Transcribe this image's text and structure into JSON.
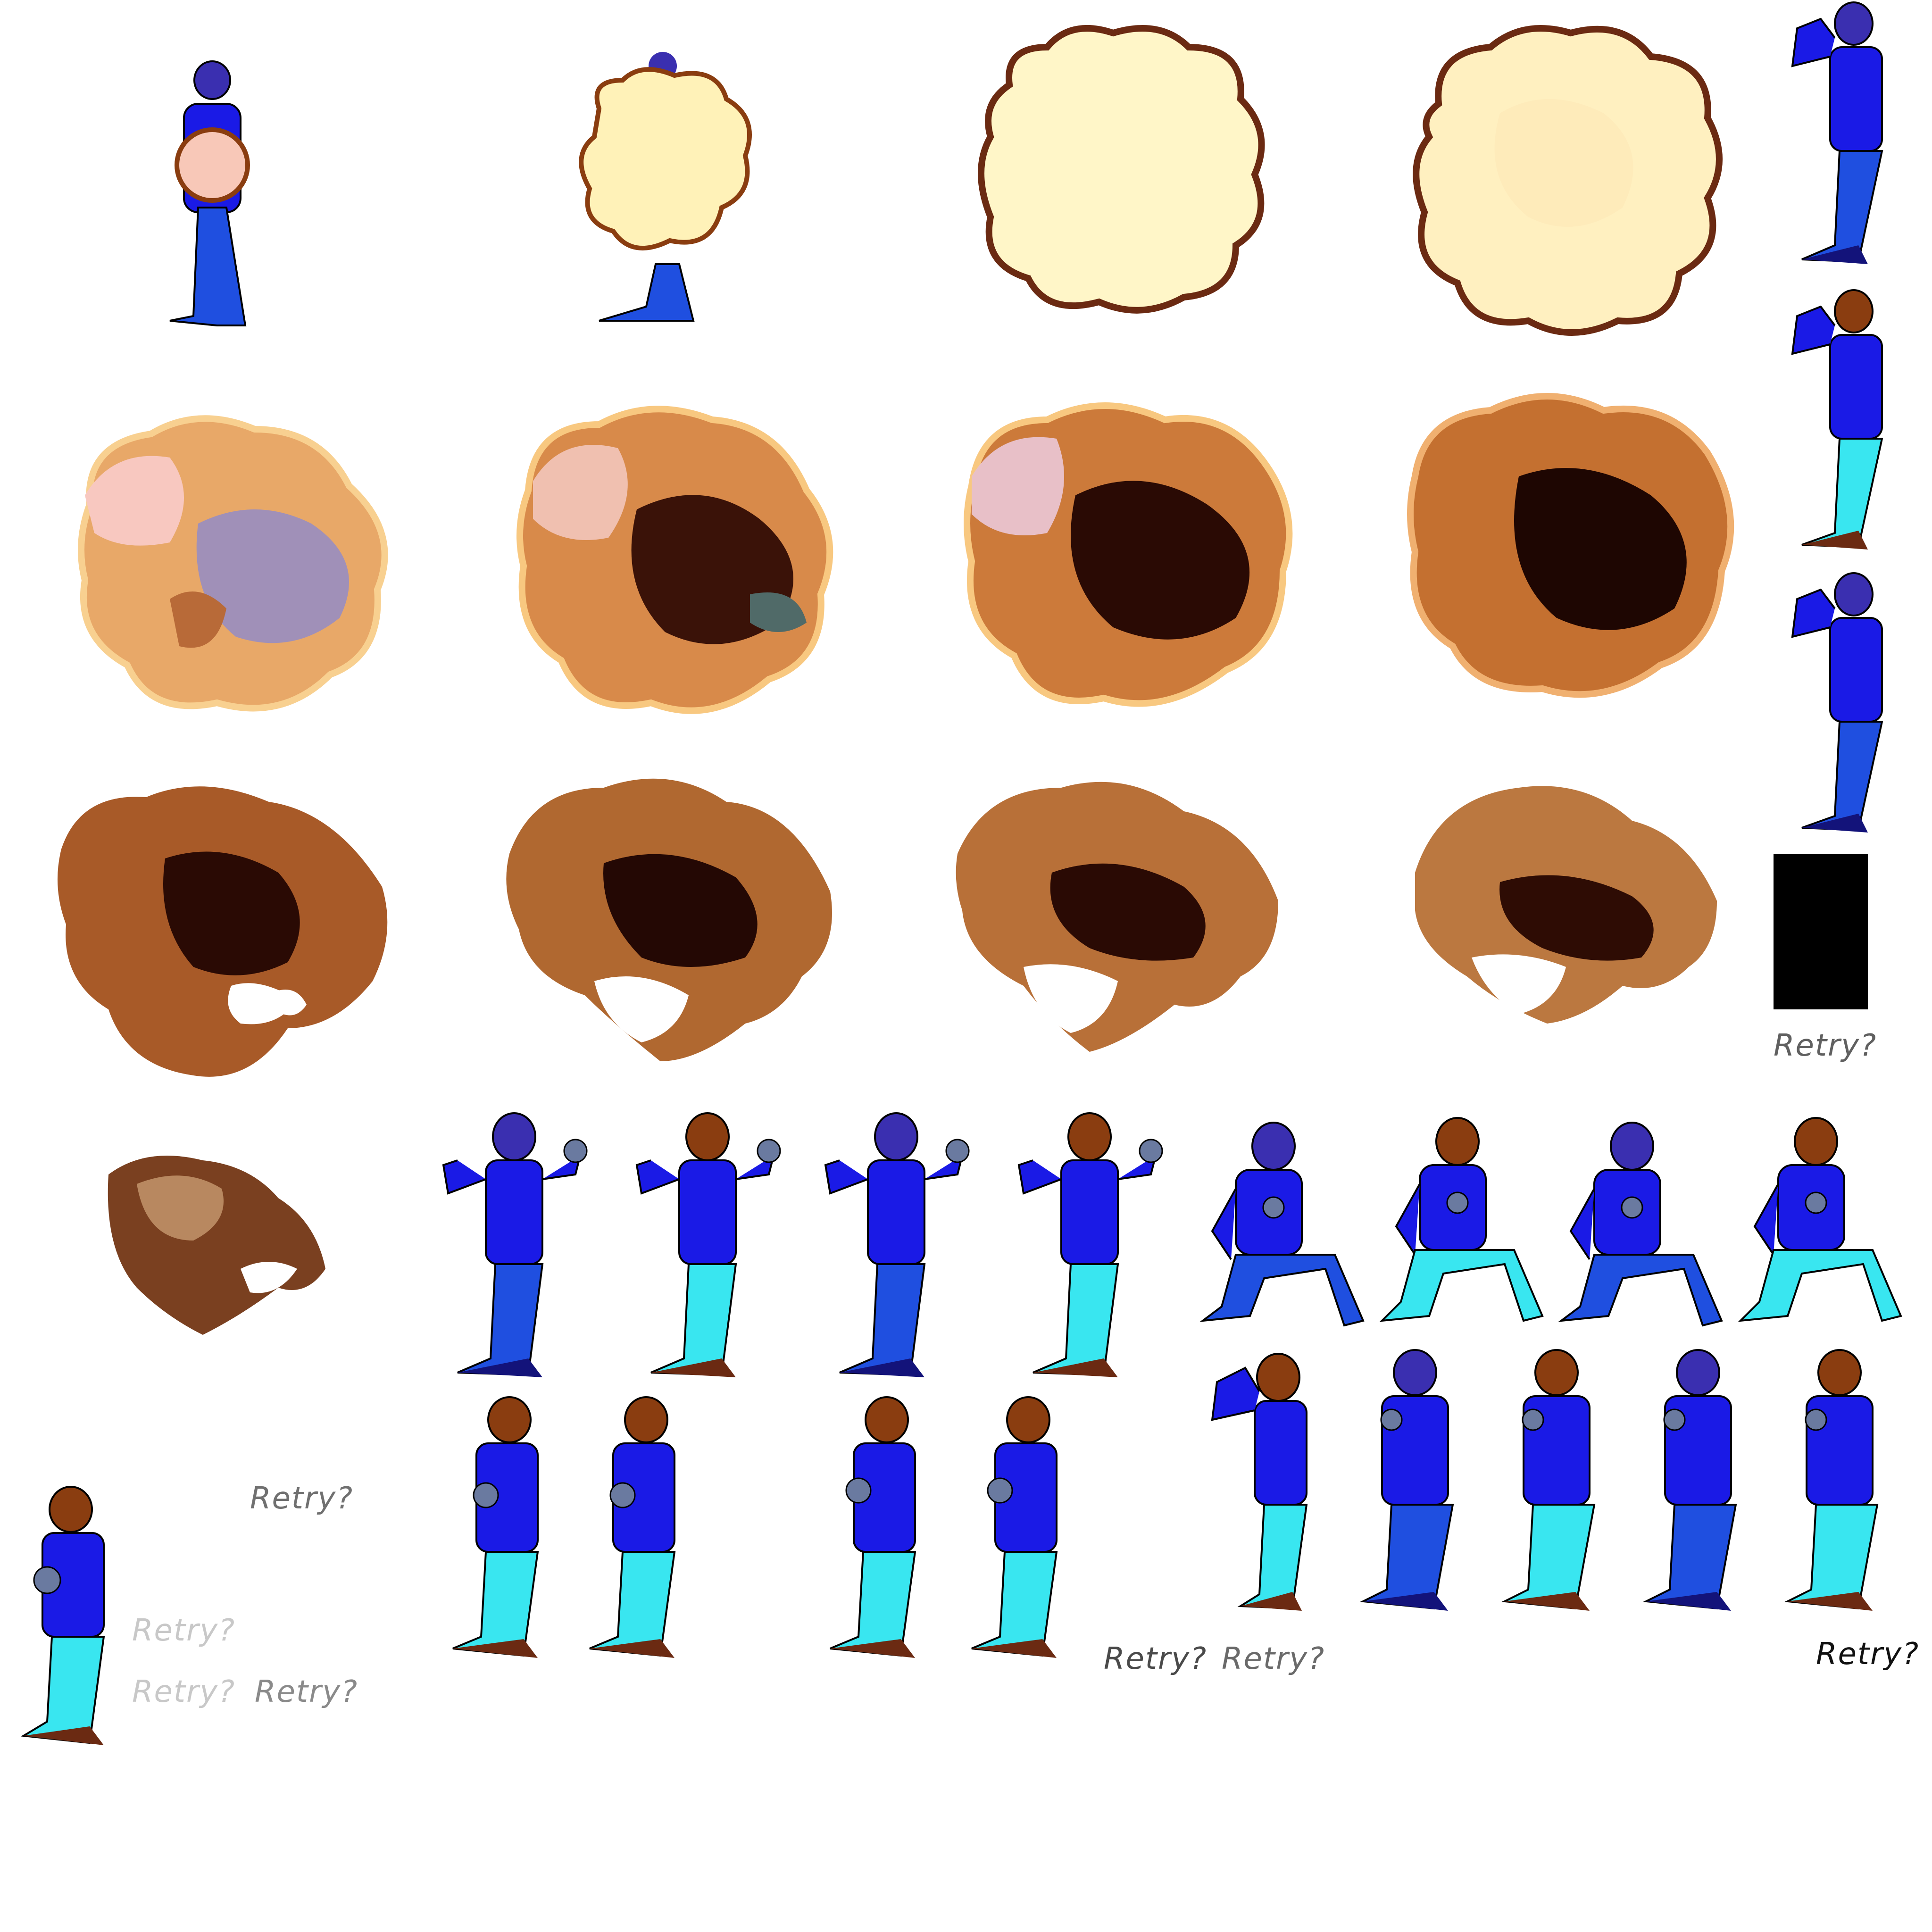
{
  "colors": {
    "shirt": "#1a1ae6",
    "shirt_dark": "#0d0d9a",
    "head_blue": "#3a2fb0",
    "skin_brown": "#8a3d10",
    "pants_blue": "#1f4fe0",
    "pants_cyan": "#39e6f0",
    "shoe_navy": "#13137a",
    "shoe_brown": "#6b2a12",
    "outline": "#000000",
    "black_box": "#000000"
  },
  "sprites": {
    "explosion_frames": 14,
    "character_frames": 25,
    "black_frames": 1
  },
  "retry_labels": [
    {
      "text": "Retry?",
      "color": "#606060"
    },
    {
      "text": "Retry?",
      "color": "#707070"
    },
    {
      "text": "Retry?",
      "color": "#c8c8c8"
    },
    {
      "text": "Retry?",
      "color": "#c8c8c8"
    },
    {
      "text": "Retry?",
      "color": "#8a8a8a"
    },
    {
      "text": "Retry?",
      "color": "#4a4a4a"
    },
    {
      "text": "Retry?",
      "color": "#6a6a6a"
    },
    {
      "text": "Retry?",
      "color": "#111111"
    }
  ]
}
